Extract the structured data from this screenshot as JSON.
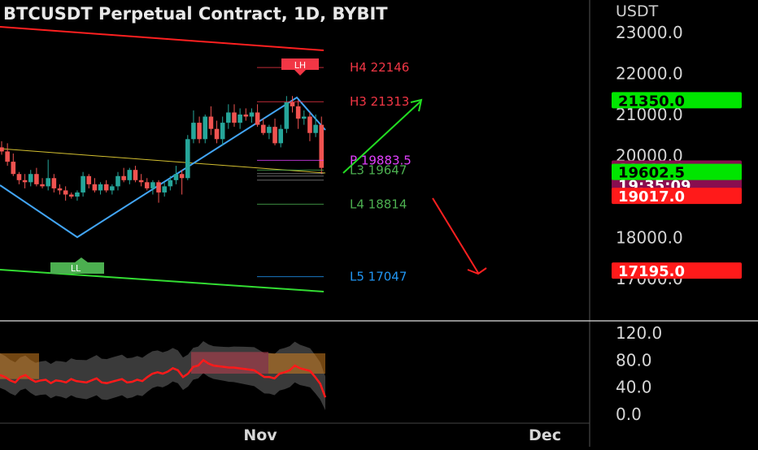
{
  "header": {
    "title": "BTCUSDT Perpetual Contract, 1D, BYBIT",
    "currency": "USDT"
  },
  "chart_data": {
    "type": "candlestick",
    "price_axis": {
      "min": 16600,
      "max": 23600,
      "ticks": [
        17000,
        18000,
        20000,
        21000,
        22000,
        23000
      ],
      "tick_labels": [
        "17000.0",
        "18000.0",
        "20000.0",
        "21000.0",
        "22000.0",
        "23000.0"
      ]
    },
    "time_axis": {
      "labels": [
        "Nov",
        "Dec"
      ]
    },
    "candles": [
      [
        20200,
        20350,
        20020,
        20100
      ],
      [
        20100,
        20300,
        19750,
        19850
      ],
      [
        19850,
        20050,
        19500,
        19550
      ],
      [
        19550,
        19600,
        19300,
        19400
      ],
      [
        19400,
        19550,
        19200,
        19350
      ],
      [
        19350,
        19650,
        19250,
        19550
      ],
      [
        19550,
        19700,
        19250,
        19300
      ],
      [
        19300,
        19450,
        19200,
        19250
      ],
      [
        19250,
        19900,
        19150,
        19450
      ],
      [
        19450,
        19550,
        19100,
        19200
      ],
      [
        19200,
        19300,
        19050,
        19150
      ],
      [
        19150,
        19250,
        18900,
        19050
      ],
      [
        19050,
        19100,
        18950,
        19000
      ],
      [
        19000,
        19150,
        18900,
        19100
      ],
      [
        19100,
        19600,
        19000,
        19500
      ],
      [
        19500,
        19550,
        19200,
        19300
      ],
      [
        19300,
        19450,
        19100,
        19150
      ],
      [
        19150,
        19350,
        19050,
        19300
      ],
      [
        19300,
        19400,
        19100,
        19150
      ],
      [
        19150,
        19300,
        19050,
        19250
      ],
      [
        19250,
        19600,
        19150,
        19500
      ],
      [
        19500,
        19700,
        19350,
        19400
      ],
      [
        19400,
        19700,
        19300,
        19650
      ],
      [
        19650,
        19750,
        19350,
        19400
      ],
      [
        19400,
        19550,
        19250,
        19350
      ],
      [
        19350,
        19450,
        19150,
        19200
      ],
      [
        19200,
        19400,
        19050,
        19350
      ],
      [
        19350,
        19400,
        18850,
        19100
      ],
      [
        19100,
        19350,
        19000,
        19250
      ],
      [
        19250,
        19500,
        19150,
        19400
      ],
      [
        19400,
        19750,
        19300,
        19550
      ],
      [
        19550,
        19650,
        19050,
        19450
      ],
      [
        19450,
        20500,
        19400,
        20400
      ],
      [
        20400,
        21100,
        20300,
        20800
      ],
      [
        20800,
        20950,
        20300,
        20400
      ],
      [
        20400,
        21000,
        20300,
        20950
      ],
      [
        20950,
        21200,
        20500,
        20650
      ],
      [
        20650,
        20850,
        20300,
        20400
      ],
      [
        20400,
        20950,
        20250,
        20800
      ],
      [
        20800,
        21250,
        20650,
        21050
      ],
      [
        21050,
        21250,
        20700,
        20800
      ],
      [
        20800,
        21150,
        20650,
        21000
      ],
      [
        21000,
        21150,
        20850,
        20950
      ],
      [
        20950,
        21150,
        20800,
        21050
      ],
      [
        21050,
        21250,
        20700,
        20750
      ],
      [
        20750,
        20900,
        20500,
        20550
      ],
      [
        20550,
        20750,
        20400,
        20700
      ],
      [
        20700,
        20900,
        20250,
        20300
      ],
      [
        20300,
        20750,
        20200,
        20650
      ],
      [
        20650,
        21450,
        20550,
        21300
      ],
      [
        21300,
        21450,
        21050,
        21200
      ],
      [
        21200,
        21350,
        20650,
        20900
      ],
      [
        20900,
        21100,
        20750,
        20950
      ],
      [
        20950,
        21050,
        20350,
        20550
      ],
      [
        20550,
        21000,
        20450,
        20750
      ],
      [
        20750,
        20950,
        19550,
        19700
      ]
    ],
    "pivot_levels": [
      {
        "name": "H4",
        "value": 22146,
        "label": "H4 22146",
        "color": "#f23645"
      },
      {
        "name": "H3",
        "value": 21313,
        "label": "H3 21313",
        "color": "#f23645"
      },
      {
        "name": "P",
        "value": 19883.5,
        "label": "P 19883.5",
        "color": "#e040fb"
      },
      {
        "name": "L3",
        "value": 19647,
        "label": "L3 19647",
        "color": "#4caf50"
      },
      {
        "name": "L4",
        "value": 18814,
        "label": "L4 18814",
        "color": "#4caf50"
      },
      {
        "name": "L5",
        "value": 17047,
        "label": "L5 17047",
        "color": "#2196f3"
      }
    ],
    "markers": [
      {
        "label": "LH",
        "color": "#f23645"
      },
      {
        "label": "LL",
        "color": "#4caf50"
      }
    ],
    "price_tags": [
      {
        "value": 21350,
        "label": "21350.0",
        "bg": "#00e600",
        "fg": "#000000"
      },
      {
        "value": 19683,
        "label": "19683.0",
        "sublabel": "19:35:09",
        "bg": "#880e4f",
        "fg": "#ffffff"
      },
      {
        "value": 19602.5,
        "label": "19602.5",
        "bg": "#00e600",
        "fg": "#000000"
      },
      {
        "value": 19017,
        "label": "19017.0",
        "bg": "#ff1a1a",
        "fg": "#ffffff"
      },
      {
        "value": 17195,
        "label": "17195.0",
        "bg": "#ff1a1a",
        "fg": "#ffffff"
      }
    ],
    "oscillator": {
      "min": 0,
      "max": 120,
      "ticks": [
        0,
        40,
        80,
        120
      ],
      "tick_labels": [
        "0.0",
        "40.0",
        "80.0",
        "120.0"
      ],
      "values": [
        58,
        55,
        50,
        47,
        55,
        58,
        52,
        48,
        50,
        51,
        46,
        50,
        49,
        47,
        52,
        49,
        48,
        47,
        50,
        53,
        47,
        46,
        48,
        50,
        52,
        47,
        48,
        51,
        49,
        55,
        60,
        62,
        60,
        63,
        68,
        65,
        55,
        60,
        70,
        72,
        80,
        75,
        72,
        71,
        70,
        69,
        69,
        68,
        67,
        66,
        65,
        60,
        55,
        55,
        53,
        60,
        62,
        65,
        72,
        68,
        66,
        64,
        55,
        45,
        25
      ]
    },
    "colors": {
      "up": "#26a69a",
      "down": "#ef5350",
      "trend": "#42a5f5",
      "channel_top": "#ff2020",
      "channel_bottom": "#33dd33",
      "osc_line": "#ff1a1a"
    }
  }
}
